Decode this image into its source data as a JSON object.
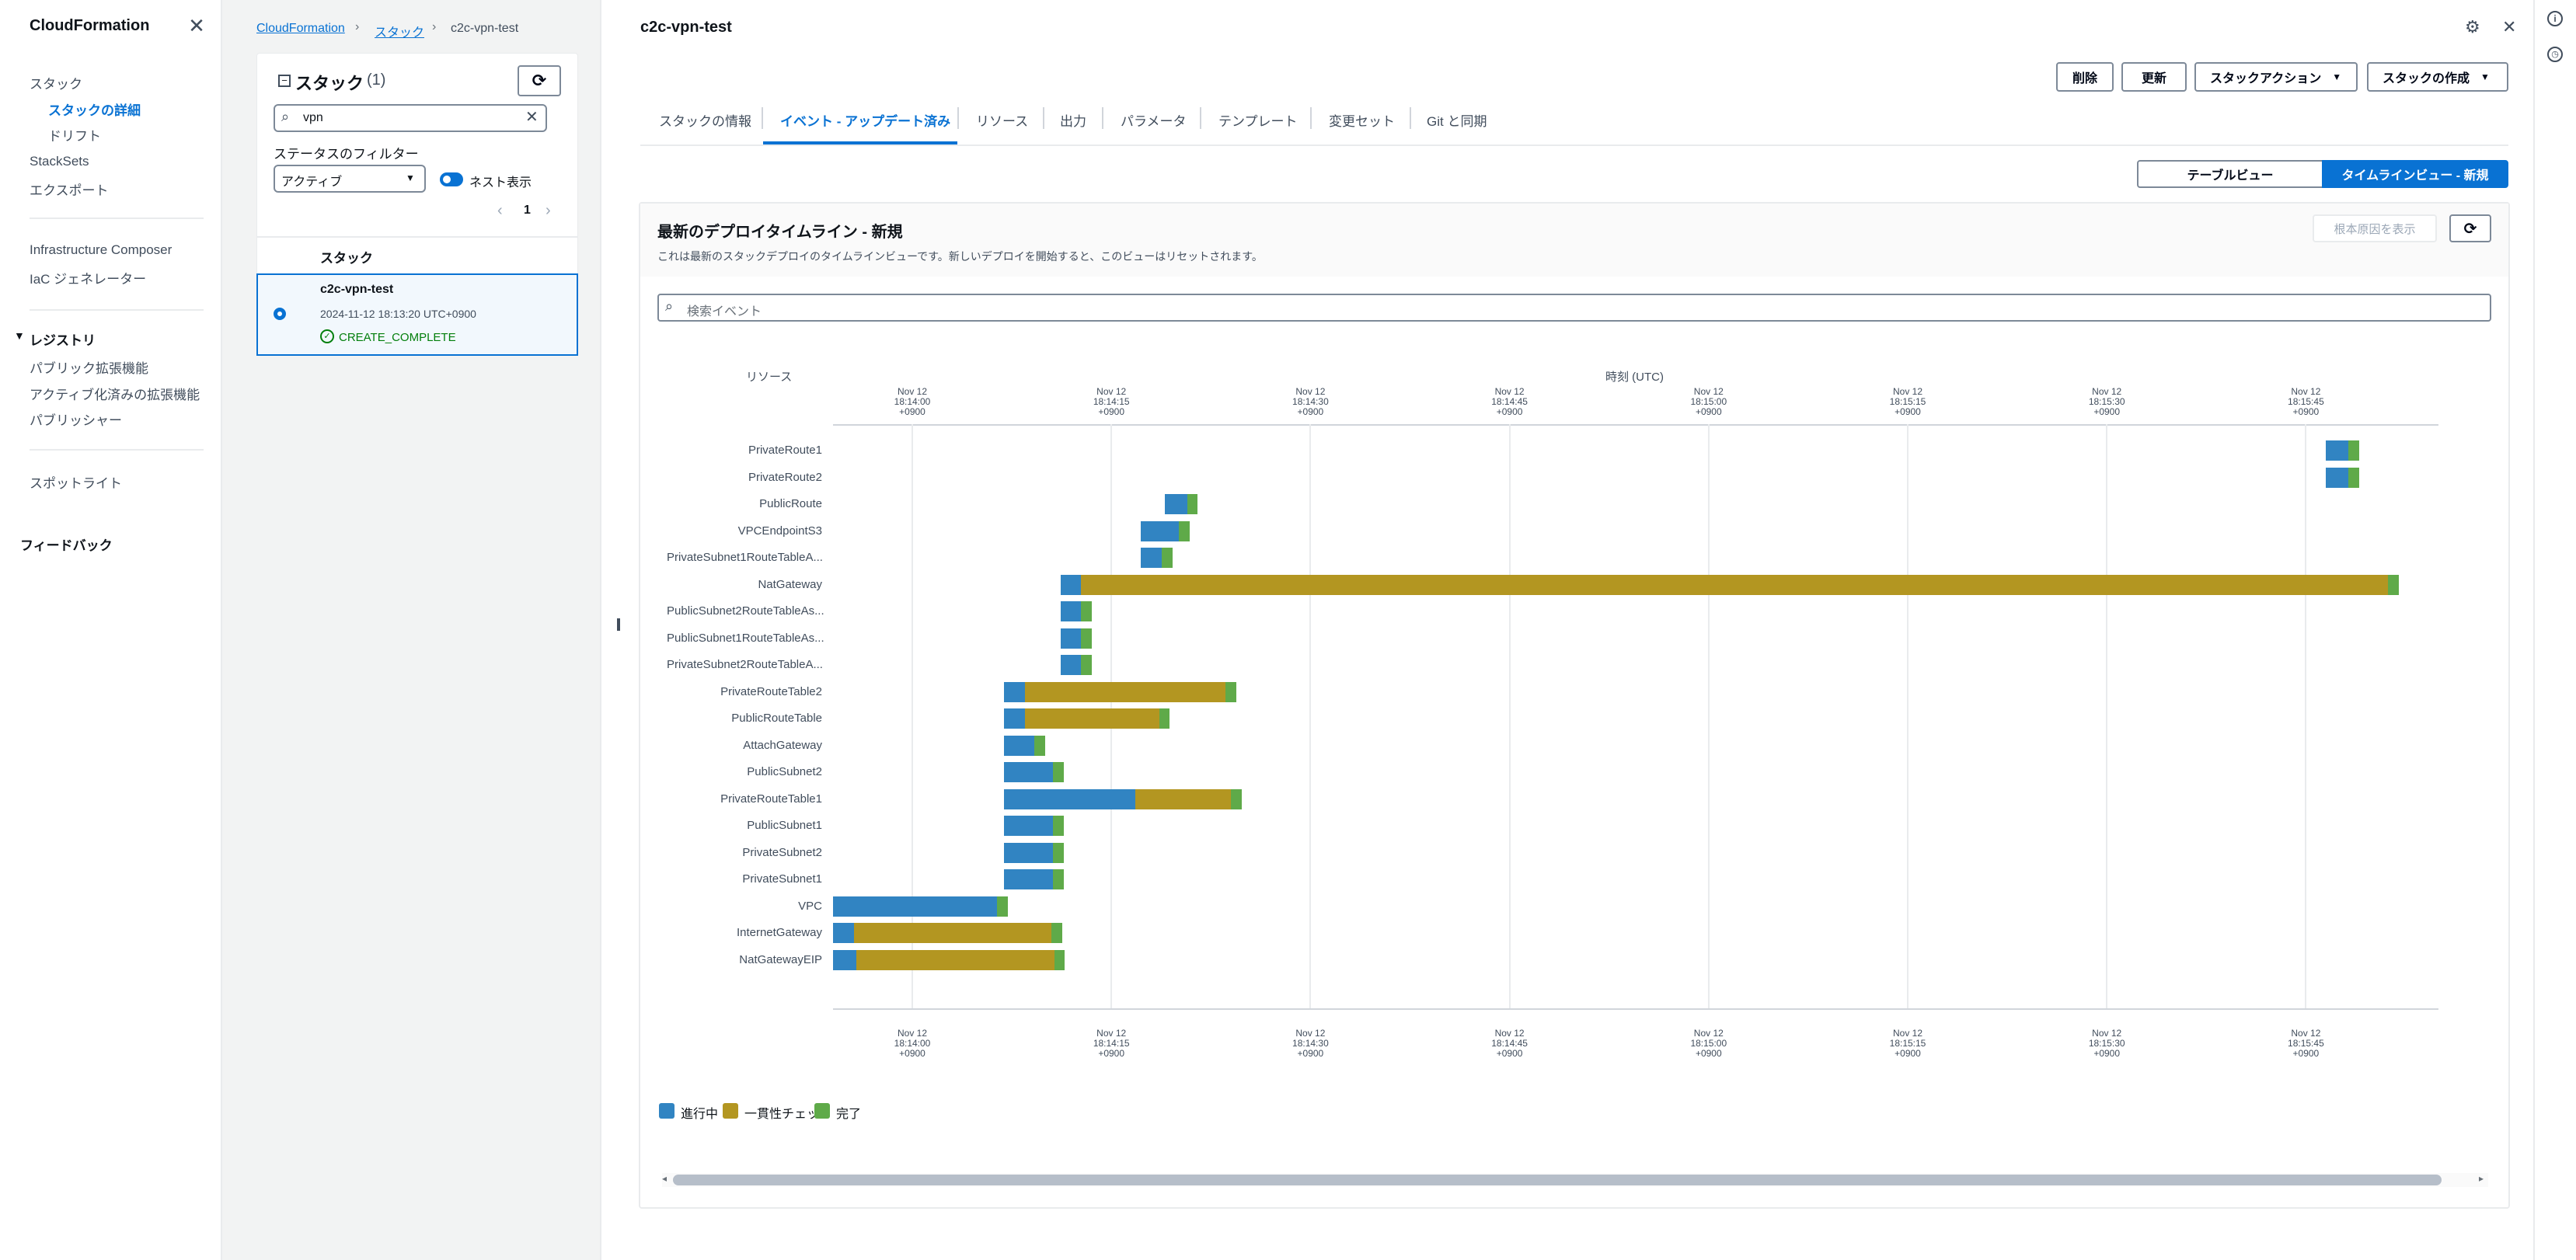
{
  "nav": {
    "title": "CloudFormation",
    "items": [
      {
        "label": "スタック",
        "active": false
      },
      {
        "label": "スタックの詳細",
        "active": true
      },
      {
        "label": "ドリフト",
        "active": false
      },
      {
        "label": "StackSets",
        "active": false
      },
      {
        "label": "エクスポート",
        "active": false
      },
      {
        "label": "Infrastructure Composer",
        "active": false
      },
      {
        "label": "IaC ジェネレーター",
        "active": false
      },
      {
        "label": "パブリック拡張機能",
        "active": false
      },
      {
        "label": "アクティブ化済みの拡張機能",
        "active": false
      },
      {
        "label": "パブリッシャー",
        "active": false
      },
      {
        "label": "スポットライト",
        "active": false
      }
    ],
    "registry_heading": "レジストリ",
    "feedback": "フィードバック"
  },
  "breadcrumb": {
    "items": [
      "CloudFormation",
      "スタック",
      "c2c-vpn-test"
    ],
    "separator": "›"
  },
  "stack_list": {
    "heading": "スタック",
    "count": "(1)",
    "search_value": "vpn",
    "filter_label": "ステータスのフィルター",
    "filter_value": "アクティブ",
    "nested_toggle_label": "ネスト表示",
    "page_number": "1",
    "column_header": "スタック",
    "rows": [
      {
        "name": "c2c-vpn-test",
        "timestamp": "2024-11-12 18:13:20 UTC+0900",
        "status": "CREATE_COMPLETE"
      }
    ]
  },
  "main": {
    "title": "c2c-vpn-test",
    "buttons": {
      "delete": "削除",
      "update": "更新",
      "stack_actions": "スタックアクション",
      "create_stack": "スタックの作成"
    },
    "tabs": [
      "スタックの情報",
      "イベント - アップデート済み",
      "リソース",
      "出力",
      "パラメータ",
      "テンプレート",
      "変更セット",
      "Git と同期"
    ],
    "active_tab_index": 1,
    "view_toggle": {
      "table": "テーブルビュー",
      "timeline": "タイムラインビュー - 新規",
      "selected": "timeline"
    },
    "timeline": {
      "heading": "最新のデプロイタイムライン - 新規",
      "description": "これは最新のスタックデプロイのタイムラインビューです。新しいデプロイを開始すると、このビューはリセットされます。",
      "root_cause_button": "根本原因を表示",
      "search_placeholder": "検索イベント",
      "resource_column_label": "リソース",
      "time_axis_label": "時刻 (UTC)",
      "legend": [
        {
          "label": "進行中",
          "color": "#3184c2"
        },
        {
          "label": "一貫性チェック",
          "color": "#b39621"
        },
        {
          "label": "完了",
          "color": "#5faa49"
        }
      ]
    }
  },
  "chart_data": {
    "type": "gantt",
    "title": "最新のデプロイタイムライン - 新規",
    "xlabel": "時刻 (UTC)",
    "ylabel": "リソース",
    "x_unit": "seconds after 18:14:00 +0900",
    "xlim": [
      -6,
      115
    ],
    "ticks": [
      {
        "t": 0,
        "lines": [
          "Nov 12",
          "18:14:00",
          "+0900"
        ]
      },
      {
        "t": 15,
        "lines": [
          "Nov 12",
          "18:14:15",
          "+0900"
        ]
      },
      {
        "t": 30,
        "lines": [
          "Nov 12",
          "18:14:30",
          "+0900"
        ]
      },
      {
        "t": 45,
        "lines": [
          "Nov 12",
          "18:14:45",
          "+0900"
        ]
      },
      {
        "t": 60,
        "lines": [
          "Nov 12",
          "18:15:00",
          "+0900"
        ]
      },
      {
        "t": 75,
        "lines": [
          "Nov 12",
          "18:15:15",
          "+0900"
        ]
      },
      {
        "t": 90,
        "lines": [
          "Nov 12",
          "18:15:30",
          "+0900"
        ]
      },
      {
        "t": 105,
        "lines": [
          "Nov 12",
          "18:15:45",
          "+0900"
        ]
      }
    ],
    "phases": [
      "進行中",
      "一貫性チェック",
      "完了"
    ],
    "rows": [
      {
        "resource": "PrivateRoute1",
        "start": 106.5,
        "in_progress_end": 108.2,
        "consistency_end": 108.2,
        "end": 109.0
      },
      {
        "resource": "PrivateRoute2",
        "start": 106.5,
        "in_progress_end": 108.2,
        "consistency_end": 108.2,
        "end": 109.0
      },
      {
        "resource": "PublicRoute",
        "start": 19.0,
        "in_progress_end": 20.7,
        "consistency_end": 20.7,
        "end": 21.5
      },
      {
        "resource": "VPCEndpointS3",
        "start": 17.2,
        "in_progress_end": 20.1,
        "consistency_end": 20.1,
        "end": 20.9
      },
      {
        "resource": "PrivateSubnet1RouteTableA...",
        "start": 17.2,
        "in_progress_end": 18.8,
        "consistency_end": 18.8,
        "end": 19.6
      },
      {
        "resource": "NatGateway",
        "start": 11.2,
        "in_progress_end": 12.7,
        "consistency_end": 111.2,
        "end": 112.0
      },
      {
        "resource": "PublicSubnet2RouteTableAs...",
        "start": 11.2,
        "in_progress_end": 12.7,
        "consistency_end": 12.7,
        "end": 13.5
      },
      {
        "resource": "PublicSubnet1RouteTableAs...",
        "start": 11.2,
        "in_progress_end": 12.7,
        "consistency_end": 12.7,
        "end": 13.5
      },
      {
        "resource": "PrivateSubnet2RouteTableA...",
        "start": 11.2,
        "in_progress_end": 12.7,
        "consistency_end": 12.7,
        "end": 13.5
      },
      {
        "resource": "PrivateRouteTable2",
        "start": 6.9,
        "in_progress_end": 8.5,
        "consistency_end": 23.6,
        "end": 24.4
      },
      {
        "resource": "PublicRouteTable",
        "start": 6.9,
        "in_progress_end": 8.5,
        "consistency_end": 18.6,
        "end": 19.4
      },
      {
        "resource": "AttachGateway",
        "start": 6.9,
        "in_progress_end": 9.2,
        "consistency_end": 9.2,
        "end": 10.0
      },
      {
        "resource": "PublicSubnet2",
        "start": 6.9,
        "in_progress_end": 10.6,
        "consistency_end": 10.6,
        "end": 11.4
      },
      {
        "resource": "PrivateRouteTable1",
        "start": 6.9,
        "in_progress_end": 16.8,
        "consistency_end": 24.0,
        "end": 24.8
      },
      {
        "resource": "PublicSubnet1",
        "start": 6.9,
        "in_progress_end": 10.6,
        "consistency_end": 10.6,
        "end": 11.4
      },
      {
        "resource": "PrivateSubnet2",
        "start": 6.9,
        "in_progress_end": 10.6,
        "consistency_end": 10.6,
        "end": 11.4
      },
      {
        "resource": "PrivateSubnet1",
        "start": 6.9,
        "in_progress_end": 10.6,
        "consistency_end": 10.6,
        "end": 11.4
      },
      {
        "resource": "VPC",
        "start": -6.0,
        "in_progress_end": 6.4,
        "consistency_end": 6.4,
        "end": 7.2
      },
      {
        "resource": "InternetGateway",
        "start": -6.0,
        "in_progress_end": -4.4,
        "consistency_end": 10.5,
        "end": 11.3
      },
      {
        "resource": "NatGatewayEIP",
        "start": -6.0,
        "in_progress_end": -4.2,
        "consistency_end": 10.7,
        "end": 11.5
      }
    ]
  }
}
